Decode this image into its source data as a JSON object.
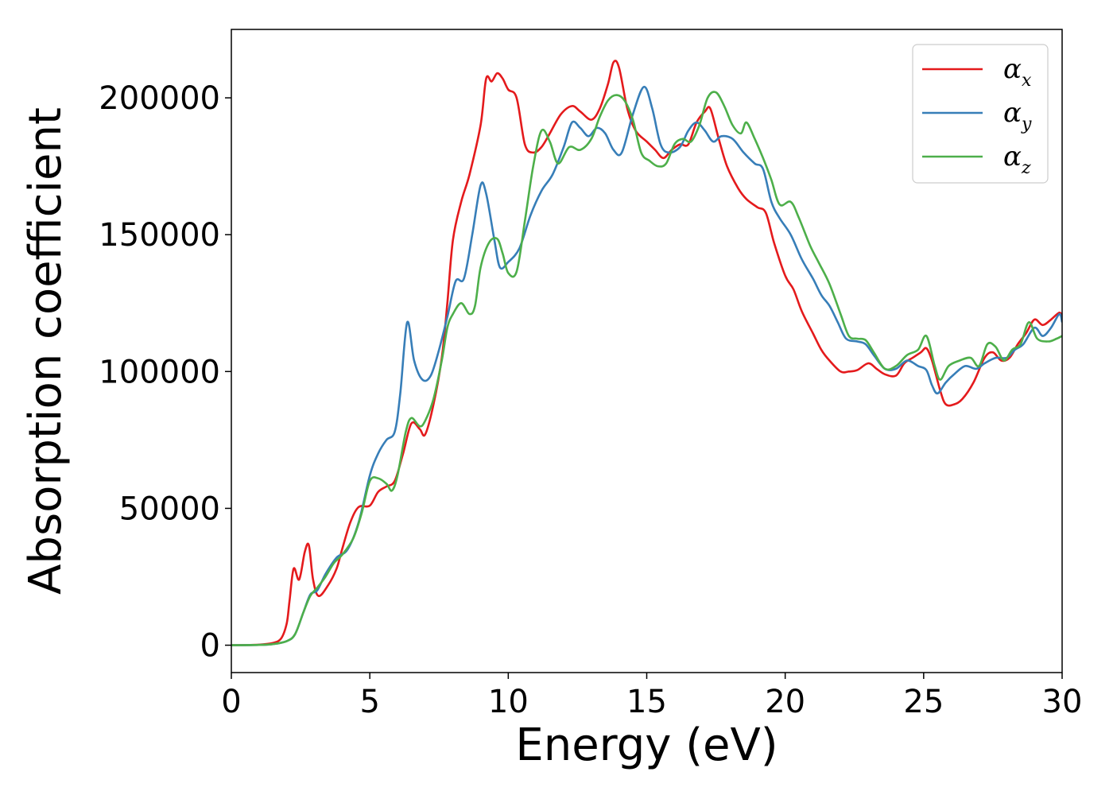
{
  "chart_data": {
    "type": "line",
    "title": "",
    "xlabel": "Energy (eV)",
    "ylabel": "Absorption coefficient",
    "xlim": [
      0,
      30
    ],
    "ylim": [
      -10000,
      225000
    ],
    "xticks": [
      0,
      5,
      10,
      15,
      20,
      25,
      30
    ],
    "xtick_labels": [
      "0",
      "5",
      "10",
      "15",
      "20",
      "25",
      "30"
    ],
    "yticks": [
      0,
      50000,
      100000,
      150000,
      200000
    ],
    "ytick_labels": [
      "0",
      "50000",
      "100000",
      "150000",
      "200000"
    ],
    "grid": false,
    "legend_position": "top-right",
    "series": [
      {
        "name": "α",
        "subscript": "x",
        "color": "#e41a1c",
        "points": [
          [
            0,
            0
          ],
          [
            1,
            200
          ],
          [
            1.5,
            800
          ],
          [
            1.8,
            2500
          ],
          [
            2.0,
            8000
          ],
          [
            2.1,
            16000
          ],
          [
            2.25,
            28000
          ],
          [
            2.45,
            24000
          ],
          [
            2.65,
            34000
          ],
          [
            2.8,
            36500
          ],
          [
            2.95,
            24000
          ],
          [
            3.15,
            18000
          ],
          [
            3.5,
            22000
          ],
          [
            3.8,
            28000
          ],
          [
            4.0,
            35000
          ],
          [
            4.3,
            45000
          ],
          [
            4.6,
            50500
          ],
          [
            5.0,
            51000
          ],
          [
            5.3,
            56000
          ],
          [
            5.6,
            58000
          ],
          [
            5.9,
            60000
          ],
          [
            6.2,
            70000
          ],
          [
            6.5,
            81000
          ],
          [
            6.8,
            79000
          ],
          [
            7.0,
            77000
          ],
          [
            7.3,
            88000
          ],
          [
            7.6,
            105000
          ],
          [
            7.8,
            125000
          ],
          [
            8.0,
            148000
          ],
          [
            8.3,
            162000
          ],
          [
            8.6,
            172000
          ],
          [
            9.0,
            190000
          ],
          [
            9.2,
            207000
          ],
          [
            9.4,
            206000
          ],
          [
            9.6,
            209000
          ],
          [
            9.8,
            207000
          ],
          [
            10.0,
            203000
          ],
          [
            10.3,
            200000
          ],
          [
            10.6,
            183000
          ],
          [
            10.9,
            180000
          ],
          [
            11.2,
            182000
          ],
          [
            11.5,
            187000
          ],
          [
            11.9,
            194000
          ],
          [
            12.3,
            197000
          ],
          [
            12.6,
            195000
          ],
          [
            13.0,
            192000
          ],
          [
            13.3,
            196000
          ],
          [
            13.6,
            205000
          ],
          [
            13.8,
            213000
          ],
          [
            14.0,
            211000
          ],
          [
            14.3,
            196000
          ],
          [
            14.6,
            188000
          ],
          [
            15.0,
            184000
          ],
          [
            15.3,
            181000
          ],
          [
            15.6,
            178000
          ],
          [
            15.9,
            181000
          ],
          [
            16.2,
            183000
          ],
          [
            16.5,
            183000
          ],
          [
            16.8,
            191000
          ],
          [
            17.1,
            195000
          ],
          [
            17.3,
            196000
          ],
          [
            17.6,
            185000
          ],
          [
            17.9,
            175000
          ],
          [
            18.3,
            167000
          ],
          [
            18.6,
            163000
          ],
          [
            19.0,
            160000
          ],
          [
            19.3,
            158000
          ],
          [
            19.6,
            147000
          ],
          [
            20.0,
            135000
          ],
          [
            20.3,
            130000
          ],
          [
            20.6,
            122000
          ],
          [
            21.0,
            114000
          ],
          [
            21.3,
            108000
          ],
          [
            21.6,
            104000
          ],
          [
            22.0,
            100000
          ],
          [
            22.3,
            100000
          ],
          [
            22.6,
            100500
          ],
          [
            23.0,
            103000
          ],
          [
            23.3,
            101000
          ],
          [
            23.6,
            99000
          ],
          [
            24.0,
            98500
          ],
          [
            24.3,
            103000
          ],
          [
            24.6,
            105000
          ],
          [
            24.9,
            107000
          ],
          [
            25.1,
            108500
          ],
          [
            25.3,
            104000
          ],
          [
            25.6,
            93000
          ],
          [
            25.8,
            88000
          ],
          [
            26.1,
            88000
          ],
          [
            26.4,
            90000
          ],
          [
            26.8,
            96000
          ],
          [
            27.2,
            105000
          ],
          [
            27.5,
            107000
          ],
          [
            27.8,
            104000
          ],
          [
            28.1,
            105000
          ],
          [
            28.4,
            110000
          ],
          [
            28.7,
            114000
          ],
          [
            29.0,
            119000
          ],
          [
            29.3,
            117000
          ],
          [
            29.6,
            119000
          ],
          [
            29.9,
            121500
          ],
          [
            30,
            120000
          ]
        ]
      },
      {
        "name": "α",
        "subscript": "y",
        "color": "#377eb8",
        "points": [
          [
            0,
            0
          ],
          [
            1,
            100
          ],
          [
            1.5,
            400
          ],
          [
            2.0,
            1500
          ],
          [
            2.3,
            4000
          ],
          [
            2.6,
            12000
          ],
          [
            2.85,
            18500
          ],
          [
            3.1,
            20000
          ],
          [
            3.4,
            26000
          ],
          [
            3.8,
            32000
          ],
          [
            4.2,
            35000
          ],
          [
            4.6,
            45000
          ],
          [
            5.0,
            62000
          ],
          [
            5.3,
            70000
          ],
          [
            5.6,
            75000
          ],
          [
            5.9,
            78000
          ],
          [
            6.1,
            92000
          ],
          [
            6.35,
            118000
          ],
          [
            6.6,
            104000
          ],
          [
            6.9,
            97000
          ],
          [
            7.2,
            98500
          ],
          [
            7.5,
            108000
          ],
          [
            7.8,
            120000
          ],
          [
            8.1,
            133000
          ],
          [
            8.4,
            134000
          ],
          [
            8.7,
            150000
          ],
          [
            9.0,
            168000
          ],
          [
            9.2,
            165000
          ],
          [
            9.5,
            148000
          ],
          [
            9.7,
            138000
          ],
          [
            10.0,
            140000
          ],
          [
            10.4,
            145000
          ],
          [
            10.8,
            157000
          ],
          [
            11.2,
            166000
          ],
          [
            11.6,
            172000
          ],
          [
            12.0,
            182000
          ],
          [
            12.3,
            191000
          ],
          [
            12.6,
            189000
          ],
          [
            12.9,
            186000
          ],
          [
            13.2,
            189000
          ],
          [
            13.5,
            187000
          ],
          [
            13.8,
            181000
          ],
          [
            14.1,
            180000
          ],
          [
            14.5,
            194000
          ],
          [
            14.9,
            204000
          ],
          [
            15.2,
            196000
          ],
          [
            15.5,
            183000
          ],
          [
            15.8,
            180000
          ],
          [
            16.2,
            182000
          ],
          [
            16.5,
            188000
          ],
          [
            16.8,
            191000
          ],
          [
            17.1,
            188000
          ],
          [
            17.4,
            184000
          ],
          [
            17.7,
            186000
          ],
          [
            18.1,
            185000
          ],
          [
            18.5,
            180000
          ],
          [
            18.9,
            176000
          ],
          [
            19.2,
            174000
          ],
          [
            19.5,
            162000
          ],
          [
            19.8,
            156000
          ],
          [
            20.2,
            150000
          ],
          [
            20.6,
            141000
          ],
          [
            21.0,
            134000
          ],
          [
            21.3,
            128000
          ],
          [
            21.6,
            124000
          ],
          [
            21.9,
            118000
          ],
          [
            22.2,
            112000
          ],
          [
            22.6,
            111000
          ],
          [
            22.9,
            110000
          ],
          [
            23.2,
            106000
          ],
          [
            23.6,
            101000
          ],
          [
            24.0,
            101000
          ],
          [
            24.4,
            104000
          ],
          [
            24.8,
            102000
          ],
          [
            25.1,
            100500
          ],
          [
            25.3,
            95000
          ],
          [
            25.5,
            92000
          ],
          [
            25.8,
            96000
          ],
          [
            26.1,
            99000
          ],
          [
            26.5,
            102000
          ],
          [
            26.9,
            101000
          ],
          [
            27.2,
            103000
          ],
          [
            27.6,
            105000
          ],
          [
            28.0,
            105000
          ],
          [
            28.3,
            108000
          ],
          [
            28.6,
            110000
          ],
          [
            29.0,
            116000
          ],
          [
            29.3,
            113000
          ],
          [
            29.6,
            116000
          ],
          [
            29.9,
            121000
          ],
          [
            30,
            118000
          ]
        ]
      },
      {
        "name": "α",
        "subscript": "z",
        "color": "#4daf4a",
        "points": [
          [
            0,
            0
          ],
          [
            1,
            100
          ],
          [
            1.5,
            400
          ],
          [
            2.0,
            1500
          ],
          [
            2.3,
            4000
          ],
          [
            2.6,
            12000
          ],
          [
            2.85,
            18000
          ],
          [
            3.1,
            21000
          ],
          [
            3.4,
            25000
          ],
          [
            3.7,
            30000
          ],
          [
            4.0,
            33000
          ],
          [
            4.4,
            39000
          ],
          [
            4.7,
            48000
          ],
          [
            5.0,
            60000
          ],
          [
            5.3,
            61000
          ],
          [
            5.6,
            59000
          ],
          [
            5.8,
            56500
          ],
          [
            6.0,
            62000
          ],
          [
            6.3,
            78000
          ],
          [
            6.5,
            83000
          ],
          [
            6.8,
            80000
          ],
          [
            7.0,
            82000
          ],
          [
            7.3,
            90000
          ],
          [
            7.6,
            104000
          ],
          [
            7.8,
            116000
          ],
          [
            8.0,
            121000
          ],
          [
            8.3,
            125000
          ],
          [
            8.6,
            121000
          ],
          [
            8.8,
            124000
          ],
          [
            9.0,
            138000
          ],
          [
            9.3,
            147000
          ],
          [
            9.6,
            148500
          ],
          [
            9.8,
            143000
          ],
          [
            10.0,
            136000
          ],
          [
            10.3,
            136500
          ],
          [
            10.6,
            155000
          ],
          [
            10.9,
            175000
          ],
          [
            11.2,
            188000
          ],
          [
            11.5,
            184000
          ],
          [
            11.8,
            176000
          ],
          [
            12.2,
            182000
          ],
          [
            12.6,
            181000
          ],
          [
            13.0,
            185000
          ],
          [
            13.3,
            193000
          ],
          [
            13.6,
            199000
          ],
          [
            13.9,
            201000
          ],
          [
            14.2,
            199000
          ],
          [
            14.5,
            192000
          ],
          [
            14.8,
            180000
          ],
          [
            15.1,
            177000
          ],
          [
            15.4,
            175000
          ],
          [
            15.7,
            176000
          ],
          [
            16.0,
            183000
          ],
          [
            16.3,
            185000
          ],
          [
            16.6,
            184000
          ],
          [
            16.9,
            190000
          ],
          [
            17.2,
            200000
          ],
          [
            17.5,
            202000
          ],
          [
            17.8,
            197000
          ],
          [
            18.1,
            190000
          ],
          [
            18.4,
            187000
          ],
          [
            18.6,
            191000
          ],
          [
            18.9,
            185000
          ],
          [
            19.2,
            178000
          ],
          [
            19.5,
            170000
          ],
          [
            19.8,
            161000
          ],
          [
            20.2,
            162000
          ],
          [
            20.5,
            156000
          ],
          [
            20.9,
            146000
          ],
          [
            21.2,
            140000
          ],
          [
            21.6,
            132000
          ],
          [
            22.0,
            121000
          ],
          [
            22.3,
            113000
          ],
          [
            22.6,
            112000
          ],
          [
            22.9,
            111500
          ],
          [
            23.2,
            107000
          ],
          [
            23.6,
            101000
          ],
          [
            24.0,
            102000
          ],
          [
            24.4,
            106000
          ],
          [
            24.8,
            108000
          ],
          [
            25.1,
            113000
          ],
          [
            25.4,
            102000
          ],
          [
            25.6,
            97000
          ],
          [
            25.9,
            102000
          ],
          [
            26.3,
            104000
          ],
          [
            26.7,
            105000
          ],
          [
            27.0,
            102000
          ],
          [
            27.3,
            110000
          ],
          [
            27.6,
            109000
          ],
          [
            27.9,
            104000
          ],
          [
            28.2,
            108000
          ],
          [
            28.5,
            110000
          ],
          [
            28.8,
            118000
          ],
          [
            29.1,
            112000
          ],
          [
            29.5,
            111000
          ],
          [
            29.8,
            112000
          ],
          [
            30,
            113000
          ]
        ]
      }
    ]
  }
}
